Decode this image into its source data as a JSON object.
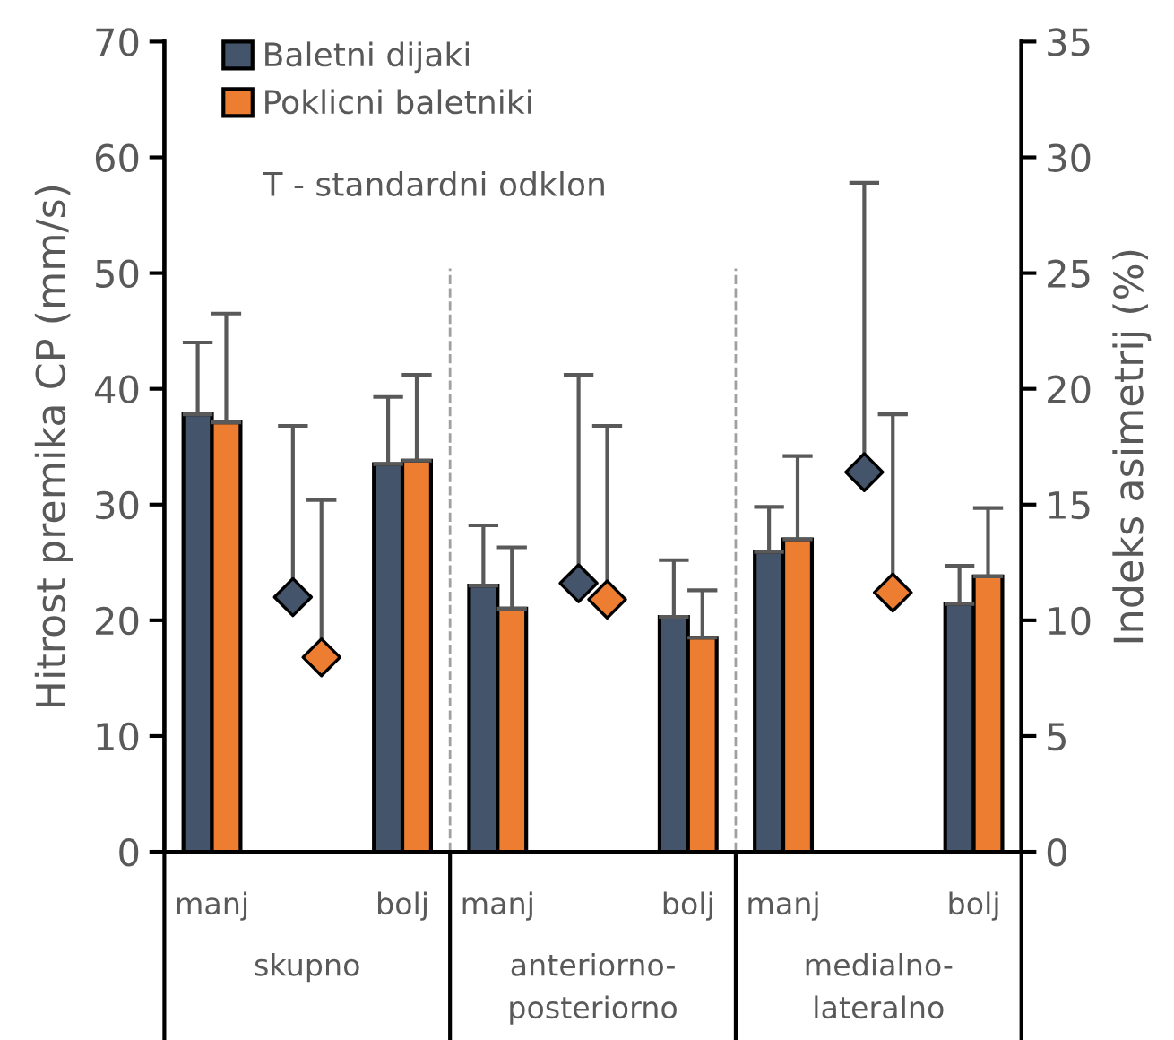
{
  "chart_data": {
    "type": "bar",
    "ylabel": "Hitrost premika CP (mm/s)",
    "y2label": "Indeks asimetrij (%)",
    "categories": [
      "manj",
      null,
      "bolj",
      "manj",
      null,
      "bolj",
      "manj",
      null,
      "bolj"
    ],
    "series": [
      {
        "name": "Baletni dijaki",
        "color": "#44546a",
        "values": [
          37.8,
          null,
          33.5,
          23.0,
          null,
          20.3,
          25.9,
          null,
          21.4
        ],
        "errors": [
          [
            37.8,
            44.0
          ],
          null,
          [
            33.5,
            39.3
          ],
          [
            23.0,
            28.2
          ],
          null,
          [
            20.3,
            25.2
          ],
          [
            25.9,
            29.8
          ],
          null,
          [
            21.4,
            24.7
          ]
        ]
      },
      {
        "name": "Poklicni baletniki",
        "color": "#ed7d31",
        "values": [
          37.1,
          null,
          33.8,
          21.0,
          null,
          18.5,
          27.0,
          null,
          23.8
        ],
        "errors": [
          [
            37.1,
            46.5
          ],
          null,
          [
            33.8,
            41.2
          ],
          [
            21.0,
            26.3
          ],
          null,
          [
            18.5,
            22.6
          ],
          [
            27.0,
            34.2
          ],
          null,
          [
            23.8,
            29.7
          ]
        ]
      },
      {
        "type": "scatter",
        "axis": "y2",
        "marker": "diamond",
        "color": "#44546a",
        "values": [
          null,
          11.0,
          null,
          null,
          11.6,
          null,
          null,
          16.4,
          null
        ],
        "errors": [
          null,
          [
            11.0,
            18.4
          ],
          null,
          null,
          [
            11.6,
            20.6
          ],
          null,
          null,
          [
            16.4,
            28.9
          ],
          null
        ]
      },
      {
        "type": "scatter",
        "axis": "y2",
        "marker": "diamond",
        "color": "#ed7d31",
        "values": [
          null,
          8.4,
          null,
          null,
          10.9,
          null,
          null,
          11.2,
          null
        ],
        "errors": [
          null,
          [
            8.4,
            15.2
          ],
          null,
          null,
          [
            10.9,
            18.4
          ],
          null,
          null,
          [
            11.2,
            18.9
          ],
          null
        ]
      }
    ],
    "ylim": [
      0,
      70
    ],
    "yticks": [
      0,
      10,
      20,
      30,
      40,
      50,
      60,
      70
    ],
    "y2lim": [
      0,
      35
    ],
    "y2ticks": [
      0,
      5,
      10,
      15,
      20,
      25,
      30,
      35
    ],
    "annotations": [
      "T - standardni odklon",
      "skupno",
      "anteriorno-\nposteriorno",
      "medialno-\nlateralno"
    ],
    "legend": "top left",
    "grid": false
  }
}
